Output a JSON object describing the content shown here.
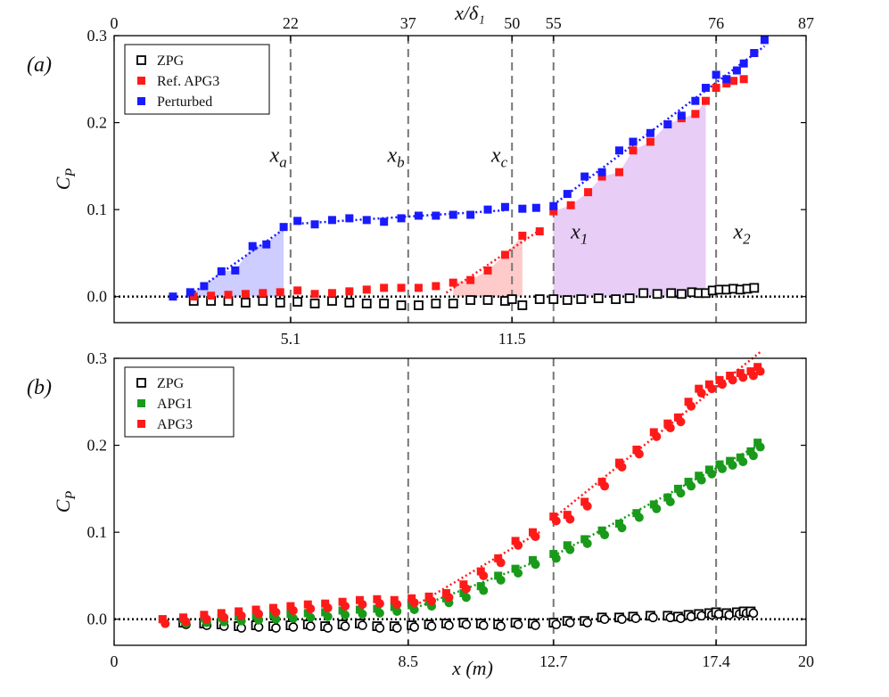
{
  "colors": {
    "zpg": "#000000",
    "red": "#ff1a1a",
    "blue": "#1a1aff",
    "green": "#1a9a1a",
    "dashed": "#777777",
    "shade_blue": "#c8c8ff",
    "shade_red": "#ffc4c4",
    "shade_purple": "#e6c8f5"
  },
  "chart_data": [
    {
      "panel": "(a)",
      "type": "scatter",
      "title": "",
      "xlabel_top": "x/δ₁",
      "ylabel": "C_P",
      "xlim": [
        0,
        20
      ],
      "ylim": [
        -0.03,
        0.3
      ],
      "yticks": [
        "0.0",
        "0.1",
        "0.2",
        "0.3"
      ],
      "top_ticks": [
        {
          "x": 0,
          "label": "0"
        },
        {
          "x": 5.1,
          "label": "22"
        },
        {
          "x": 8.5,
          "label": "37"
        },
        {
          "x": 11.5,
          "label": "50"
        },
        {
          "x": 12.7,
          "label": "55"
        },
        {
          "x": 17.4,
          "label": "76"
        },
        {
          "x": 20,
          "label": "87"
        }
      ],
      "bottom_ticks": [
        {
          "x": 5.1,
          "label": "5.1"
        },
        {
          "x": 11.5,
          "label": "11.5"
        }
      ],
      "dashed_lines_x": [
        5.1,
        8.5,
        11.5,
        12.7,
        17.4
      ],
      "region_labels": [
        {
          "x": 4.5,
          "y": 0.155,
          "label": "x",
          "sub": "a"
        },
        {
          "x": 7.9,
          "y": 0.155,
          "label": "x",
          "sub": "b"
        },
        {
          "x": 10.9,
          "y": 0.155,
          "label": "x",
          "sub": "c"
        },
        {
          "x": 13.2,
          "y": 0.067,
          "label": "x",
          "sub": "1"
        },
        {
          "x": 17.9,
          "y": 0.067,
          "label": "x",
          "sub": "2"
        }
      ],
      "legend": [
        "ZPG",
        "Ref. APG3",
        "Perturbed"
      ],
      "series": [
        {
          "name": "ZPG",
          "marker": "open-square",
          "color": "#000000",
          "x": [
            2.3,
            2.8,
            3.3,
            3.8,
            4.3,
            4.8,
            5.3,
            5.8,
            6.3,
            6.8,
            7.3,
            7.8,
            8.3,
            8.8,
            9.3,
            9.8,
            10.3,
            10.8,
            11.3,
            11.5,
            11.8,
            12.3,
            12.7,
            13.1,
            13.5,
            14.0,
            14.5,
            14.9,
            15.3,
            15.7,
            16.1,
            16.4,
            16.7,
            16.9,
            17.1,
            17.3,
            17.5,
            17.7,
            17.9,
            18.1,
            18.3,
            18.5
          ],
          "y": [
            -0.005,
            -0.005,
            -0.005,
            -0.007,
            -0.005,
            -0.007,
            -0.006,
            -0.008,
            -0.005,
            -0.007,
            -0.008,
            -0.008,
            -0.01,
            -0.01,
            -0.008,
            -0.008,
            -0.004,
            -0.004,
            -0.005,
            -0.003,
            -0.01,
            -0.003,
            -0.003,
            -0.004,
            -0.003,
            -0.002,
            -0.003,
            -0.002,
            0.004,
            0.003,
            0.004,
            0.003,
            0.005,
            0.004,
            0.004,
            0.007,
            0.008,
            0.008,
            0.009,
            0.008,
            0.009,
            0.01
          ]
        },
        {
          "name": "Ref. APG3",
          "marker": "filled-square",
          "color": "#ff1a1a",
          "x": [
            2.3,
            2.8,
            3.3,
            3.8,
            4.3,
            4.8,
            5.3,
            5.8,
            6.3,
            6.8,
            7.3,
            7.8,
            8.3,
            8.8,
            9.3,
            9.8,
            10.3,
            10.8,
            11.3,
            11.8,
            12.3,
            12.7,
            13.2,
            13.7,
            14.1,
            14.6,
            15.0,
            15.5,
            16.0,
            16.4,
            16.8,
            17.1,
            17.4,
            17.7,
            17.9,
            18.2,
            18.5
          ],
          "y": [
            0.0,
            0.001,
            0.002,
            0.003,
            0.004,
            0.005,
            0.007,
            0.003,
            0.004,
            0.006,
            0.008,
            0.01,
            0.01,
            0.01,
            0.012,
            0.016,
            0.019,
            0.03,
            0.048,
            0.07,
            0.075,
            0.098,
            0.105,
            0.12,
            0.138,
            0.143,
            0.168,
            0.178,
            0.198,
            0.205,
            0.21,
            0.225,
            0.24,
            0.245,
            0.248,
            0.25,
            0.28
          ]
        },
        {
          "name": "Perturbed",
          "marker": "filled-square",
          "color": "#1a1aff",
          "x": [
            1.7,
            2.2,
            2.6,
            3.1,
            3.5,
            4.0,
            4.4,
            4.9,
            5.3,
            5.8,
            6.3,
            6.8,
            7.3,
            7.8,
            8.3,
            8.8,
            9.3,
            9.8,
            10.3,
            10.8,
            11.3,
            11.8,
            12.2,
            12.7,
            13.1,
            13.6,
            14.1,
            14.6,
            15.0,
            15.5,
            16.0,
            16.4,
            16.8,
            17.1,
            17.4,
            17.7,
            18.0,
            18.2,
            18.5,
            18.8
          ],
          "y": [
            0.0,
            0.005,
            0.012,
            0.029,
            0.03,
            0.058,
            0.06,
            0.08,
            0.087,
            0.083,
            0.088,
            0.09,
            0.088,
            0.086,
            0.09,
            0.093,
            0.093,
            0.094,
            0.094,
            0.1,
            0.103,
            0.101,
            0.102,
            0.104,
            0.118,
            0.138,
            0.143,
            0.168,
            0.178,
            0.188,
            0.198,
            0.208,
            0.225,
            0.24,
            0.255,
            0.25,
            0.26,
            0.268,
            0.28,
            0.295
          ]
        }
      ]
    },
    {
      "panel": "(b)",
      "type": "scatter",
      "title": "",
      "xlabel": "x (m)",
      "ylabel": "C_P",
      "xlim": [
        0,
        20
      ],
      "ylim": [
        -0.03,
        0.3
      ],
      "yticks": [
        "0.0",
        "0.1",
        "0.2",
        "0.3"
      ],
      "bottom_ticks": [
        {
          "x": 0,
          "label": "0"
        },
        {
          "x": 8.5,
          "label": "8.5"
        },
        {
          "x": 12.7,
          "label": "12.7"
        },
        {
          "x": 17.4,
          "label": "17.4"
        },
        {
          "x": 20,
          "label": "20"
        }
      ],
      "dashed_lines_x": [
        8.5,
        12.7,
        17.4
      ],
      "legend": [
        "ZPG",
        "APG1",
        "APG3"
      ],
      "series": [
        {
          "name": "ZPG",
          "marker": "open-square",
          "color": "#000000",
          "x": [
            2.0,
            2.6,
            3.1,
            3.6,
            4.1,
            4.6,
            5.1,
            5.6,
            6.1,
            6.6,
            7.1,
            7.6,
            8.1,
            8.6,
            9.1,
            9.6,
            10.1,
            10.6,
            11.1,
            11.6,
            12.1,
            12.7,
            13.1,
            13.6,
            14.1,
            14.6,
            15.0,
            15.5,
            16.0,
            16.3,
            16.6,
            16.9,
            17.2,
            17.4,
            17.7,
            18.0,
            18.2,
            18.4
          ],
          "y": [
            -0.004,
            -0.005,
            -0.006,
            -0.008,
            -0.007,
            -0.008,
            -0.007,
            -0.006,
            -0.008,
            -0.006,
            -0.005,
            -0.008,
            -0.008,
            -0.007,
            -0.006,
            -0.005,
            -0.004,
            -0.005,
            -0.006,
            -0.004,
            -0.005,
            -0.004,
            -0.002,
            -0.002,
            0.002,
            0.002,
            0.003,
            0.004,
            0.004,
            0.003,
            0.005,
            0.006,
            0.007,
            0.008,
            0.007,
            0.008,
            0.009,
            0.009
          ]
        },
        {
          "name": "APG1",
          "marker": "filled-square",
          "color": "#1a9a1a",
          "x": [
            1.4,
            2.0,
            2.6,
            3.1,
            3.6,
            4.1,
            4.6,
            5.1,
            5.6,
            6.1,
            6.6,
            7.1,
            7.6,
            8.1,
            8.6,
            9.1,
            9.6,
            10.1,
            10.6,
            11.1,
            11.6,
            12.1,
            12.7,
            13.1,
            13.6,
            14.1,
            14.6,
            15.1,
            15.6,
            16.0,
            16.3,
            16.6,
            16.9,
            17.2,
            17.5,
            17.8,
            18.1,
            18.4,
            18.6
          ],
          "y": [
            0.0,
            0.0,
            0.001,
            0.002,
            0.003,
            0.004,
            0.005,
            0.006,
            0.007,
            0.008,
            0.01,
            0.011,
            0.012,
            0.014,
            0.016,
            0.02,
            0.024,
            0.03,
            0.038,
            0.05,
            0.058,
            0.068,
            0.075,
            0.085,
            0.092,
            0.102,
            0.11,
            0.122,
            0.132,
            0.14,
            0.15,
            0.158,
            0.165,
            0.172,
            0.178,
            0.182,
            0.186,
            0.193,
            0.203
          ]
        },
        {
          "name": "APG3",
          "marker": "filled-square",
          "color": "#ff1a1a",
          "x": [
            1.4,
            2.0,
            2.6,
            3.1,
            3.6,
            4.1,
            4.6,
            5.1,
            5.6,
            6.1,
            6.6,
            7.1,
            7.6,
            8.1,
            8.6,
            9.1,
            9.6,
            10.1,
            10.6,
            11.1,
            11.6,
            12.1,
            12.7,
            13.1,
            13.6,
            14.1,
            14.6,
            15.1,
            15.6,
            16.0,
            16.3,
            16.6,
            16.9,
            17.2,
            17.5,
            17.8,
            18.1,
            18.4,
            18.6
          ],
          "y": [
            0.0,
            0.002,
            0.005,
            0.007,
            0.009,
            0.011,
            0.013,
            0.015,
            0.017,
            0.018,
            0.02,
            0.022,
            0.023,
            0.022,
            0.024,
            0.026,
            0.03,
            0.04,
            0.055,
            0.07,
            0.09,
            0.1,
            0.118,
            0.12,
            0.135,
            0.158,
            0.18,
            0.195,
            0.215,
            0.225,
            0.232,
            0.25,
            0.265,
            0.27,
            0.275,
            0.28,
            0.283,
            0.285,
            0.29
          ]
        }
      ]
    }
  ]
}
